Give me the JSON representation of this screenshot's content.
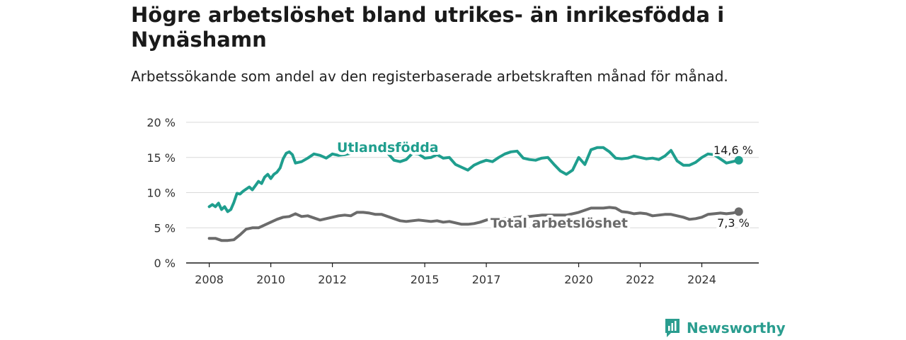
{
  "chart_data": {
    "type": "line",
    "title": "Högre arbetslöshet bland utrikes- än inrikesfödda i Nynäshamn",
    "subtitle": "Arbetssökande som andel av den registerbaserade arbetskraften månad för månad.",
    "ylim": [
      0,
      20
    ],
    "y_ticks": [
      0,
      5,
      10,
      15,
      20
    ],
    "y_tick_labels": [
      "0 %",
      "5 %",
      "10 %",
      "15 %",
      "20 %"
    ],
    "x_range": [
      2007.25,
      2025.85
    ],
    "x_ticks": [
      2008,
      2010,
      2012,
      2015,
      2017,
      2020,
      2022,
      2024
    ],
    "x_tick_labels": [
      "2008",
      "2010",
      "2012",
      "2015",
      "2017",
      "2020",
      "2022",
      "2024"
    ],
    "grid": true,
    "series": [
      {
        "name": "Utlandsfödda",
        "color": "#1f9e8e",
        "end_label": "14,6 %",
        "x": [
          2008.0,
          2008.1,
          2008.2,
          2008.3,
          2008.4,
          2008.5,
          2008.6,
          2008.7,
          2008.8,
          2008.9,
          2009.0,
          2009.1,
          2009.2,
          2009.3,
          2009.4,
          2009.5,
          2009.6,
          2009.7,
          2009.8,
          2009.9,
          2010.0,
          2010.1,
          2010.2,
          2010.3,
          2010.4,
          2010.5,
          2010.6,
          2010.7,
          2010.8,
          2010.9,
          2011.0,
          2011.2,
          2011.4,
          2011.6,
          2011.8,
          2012.0,
          2012.2,
          2012.4,
          2012.6,
          2012.8,
          2013.0,
          2013.2,
          2013.4,
          2013.6,
          2013.8,
          2014.0,
          2014.2,
          2014.4,
          2014.6,
          2014.8,
          2015.0,
          2015.2,
          2015.4,
          2015.6,
          2015.8,
          2016.0,
          2016.2,
          2016.4,
          2016.6,
          2016.8,
          2017.0,
          2017.2,
          2017.4,
          2017.6,
          2017.8,
          2018.0,
          2018.2,
          2018.4,
          2018.6,
          2018.8,
          2019.0,
          2019.2,
          2019.4,
          2019.6,
          2019.8,
          2020.0,
          2020.2,
          2020.4,
          2020.6,
          2020.8,
          2021.0,
          2021.2,
          2021.4,
          2021.6,
          2021.8,
          2022.0,
          2022.2,
          2022.4,
          2022.6,
          2022.8,
          2023.0,
          2023.2,
          2023.4,
          2023.6,
          2023.8,
          2024.0,
          2024.2,
          2024.4,
          2024.6,
          2024.8,
          2025.0,
          2025.2
        ],
        "values": [
          8.0,
          8.3,
          8.0,
          8.5,
          7.6,
          8.0,
          7.3,
          7.6,
          8.6,
          9.9,
          9.8,
          10.2,
          10.5,
          10.8,
          10.4,
          11.0,
          11.6,
          11.3,
          12.2,
          12.6,
          12.0,
          12.6,
          12.9,
          13.5,
          14.8,
          15.6,
          15.8,
          15.4,
          14.2,
          14.3,
          14.4,
          14.9,
          15.5,
          15.3,
          14.9,
          15.5,
          15.3,
          15.4,
          15.6,
          15.9,
          15.8,
          15.6,
          15.9,
          15.8,
          15.6,
          14.6,
          14.4,
          14.7,
          15.6,
          15.5,
          14.9,
          15.0,
          15.4,
          14.9,
          15.0,
          14.0,
          13.6,
          13.2,
          13.9,
          14.3,
          14.6,
          14.4,
          15.0,
          15.5,
          15.8,
          15.9,
          14.9,
          14.7,
          14.6,
          14.9,
          15.0,
          14.0,
          13.1,
          12.6,
          13.2,
          15.0,
          14.0,
          16.1,
          16.4,
          16.4,
          15.8,
          14.9,
          14.8,
          14.9,
          15.2,
          15.0,
          14.8,
          14.9,
          14.7,
          15.2,
          16.0,
          14.5,
          13.9,
          13.9,
          14.3,
          15.0,
          15.5,
          15.4,
          14.8,
          14.2,
          14.4,
          14.6
        ]
      },
      {
        "name": "Total arbetslöshet",
        "color": "#6b6b6b",
        "end_label": "7,3 %",
        "x": [
          2008.0,
          2008.2,
          2008.4,
          2008.6,
          2008.8,
          2009.0,
          2009.2,
          2009.4,
          2009.6,
          2009.8,
          2010.0,
          2010.2,
          2010.4,
          2010.6,
          2010.8,
          2011.0,
          2011.2,
          2011.4,
          2011.6,
          2011.8,
          2012.0,
          2012.2,
          2012.4,
          2012.6,
          2012.8,
          2013.0,
          2013.2,
          2013.4,
          2013.6,
          2013.8,
          2014.0,
          2014.2,
          2014.4,
          2014.6,
          2014.8,
          2015.0,
          2015.2,
          2015.4,
          2015.6,
          2015.8,
          2016.0,
          2016.2,
          2016.4,
          2016.6,
          2016.8,
          2017.0,
          2017.2,
          2017.4,
          2017.6,
          2017.8,
          2018.0,
          2018.2,
          2018.4,
          2018.6,
          2018.8,
          2019.0,
          2019.2,
          2019.4,
          2019.6,
          2019.8,
          2020.0,
          2020.2,
          2020.4,
          2020.6,
          2020.8,
          2021.0,
          2021.2,
          2021.4,
          2021.6,
          2021.8,
          2022.0,
          2022.2,
          2022.4,
          2022.6,
          2022.8,
          2023.0,
          2023.2,
          2023.4,
          2023.6,
          2023.8,
          2024.0,
          2024.2,
          2024.4,
          2024.6,
          2024.8,
          2025.0,
          2025.2
        ],
        "values": [
          3.5,
          3.5,
          3.2,
          3.2,
          3.3,
          4.0,
          4.8,
          5.0,
          5.0,
          5.4,
          5.8,
          6.2,
          6.5,
          6.6,
          7.0,
          6.6,
          6.7,
          6.4,
          6.1,
          6.3,
          6.5,
          6.7,
          6.8,
          6.7,
          7.2,
          7.2,
          7.1,
          6.9,
          6.9,
          6.6,
          6.3,
          6.0,
          5.9,
          6.0,
          6.1,
          6.0,
          5.9,
          6.0,
          5.8,
          5.9,
          5.7,
          5.5,
          5.5,
          5.6,
          5.8,
          6.1,
          6.3,
          6.3,
          6.3,
          6.4,
          6.5,
          6.6,
          6.6,
          6.7,
          6.8,
          6.8,
          6.8,
          6.8,
          6.8,
          7.0,
          7.2,
          7.5,
          7.8,
          7.8,
          7.8,
          7.9,
          7.8,
          7.3,
          7.2,
          7.0,
          7.1,
          7.0,
          6.7,
          6.8,
          6.9,
          6.9,
          6.7,
          6.5,
          6.2,
          6.3,
          6.5,
          6.9,
          7.0,
          7.1,
          7.0,
          7.1,
          7.3
        ]
      }
    ]
  },
  "brand": {
    "name": "Newsworthy",
    "icon": "newsworthy-logo-icon",
    "color": "#2a9d8f"
  }
}
